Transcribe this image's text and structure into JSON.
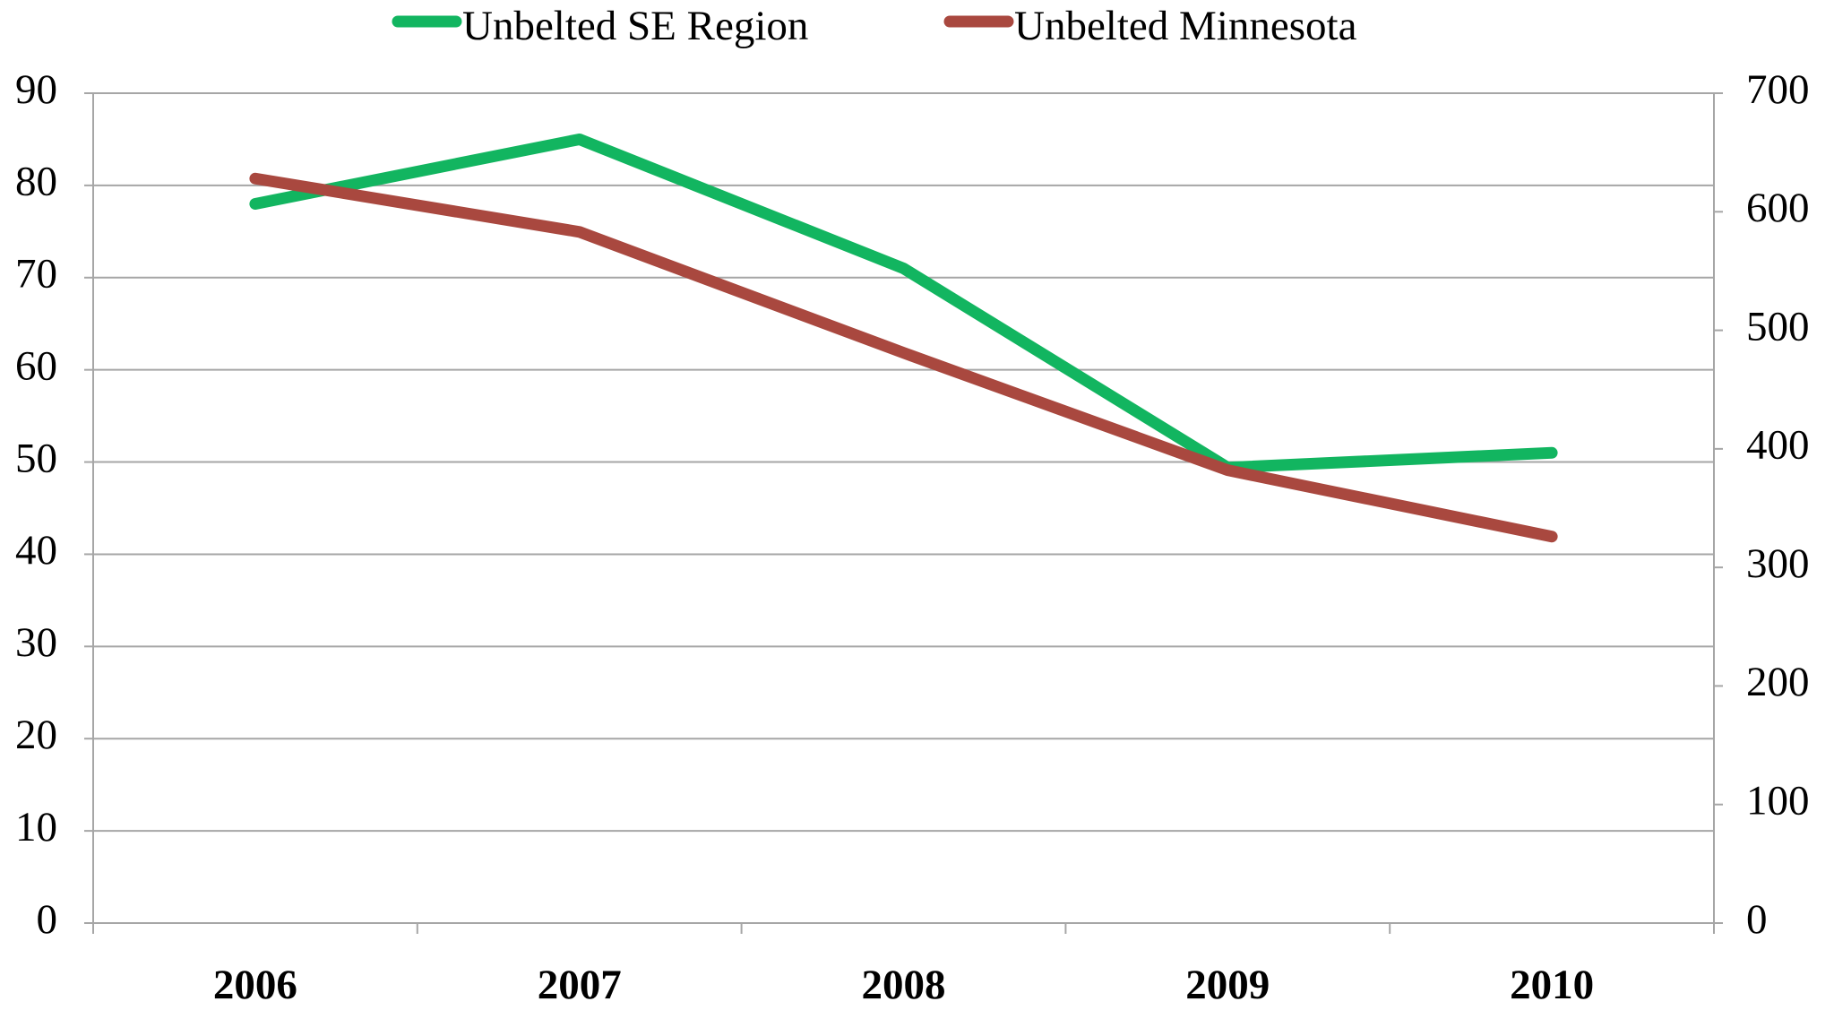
{
  "chart_data": {
    "type": "line",
    "categories": [
      "2006",
      "2007",
      "2008",
      "2009",
      "2010"
    ],
    "series": [
      {
        "name": "Unbelted SE Region",
        "color": "#12b560",
        "values": [
          78,
          85,
          71,
          49.4,
          51
        ]
      },
      {
        "name": "Unbelted Minnesota",
        "color": "#a9483f",
        "axis": "y2",
        "values": [
          628,
          583,
          481,
          382,
          326
        ]
      }
    ],
    "ylim": [
      0,
      90
    ],
    "yticks": [
      0,
      10,
      20,
      30,
      40,
      50,
      60,
      70,
      80,
      90
    ],
    "y2lim": [
      0,
      700
    ],
    "y2ticks": [
      0,
      100,
      200,
      300,
      400,
      500,
      600,
      700
    ],
    "grid": true,
    "legend": "top"
  }
}
